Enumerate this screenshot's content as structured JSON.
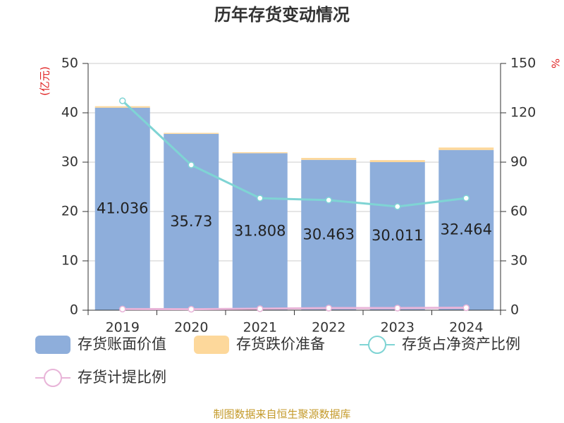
{
  "chart_data": {
    "type": "bar_line",
    "title": "历年存货变动情况",
    "y_label": "(亿元)",
    "y2_label": "%",
    "categories": [
      "2019",
      "2020",
      "2021",
      "2022",
      "2023",
      "2024"
    ],
    "series": [
      {
        "name": "存货账面价值",
        "color": "#8eaedb",
        "kind": "bar",
        "values": [
          41.036,
          35.73,
          31.808,
          30.463,
          30.011,
          32.464
        ]
      },
      {
        "name": "存货跌价准备",
        "color": "#fdd89b",
        "kind": "bar",
        "values": [
          0.3,
          0.2,
          0.2,
          0.4,
          0.4,
          0.5
        ]
      },
      {
        "name": "存货占净资产比例",
        "color": "#7fd4d4",
        "kind": "line",
        "axis": "y2",
        "values": [
          127.3,
          88.3,
          68.1,
          66.9,
          63.0,
          68.1
        ]
      },
      {
        "name": "存货计提比例",
        "color": "#e8b4d8",
        "kind": "line",
        "axis": "y2",
        "values": [
          0.7,
          0.6,
          0.9,
          1.3,
          1.3,
          1.5
        ]
      }
    ],
    "ylim": [
      0,
      50
    ],
    "yticks": [
      0,
      10,
      20,
      30,
      40,
      50
    ],
    "y2lim": [
      0,
      150
    ],
    "y2ticks": [
      0,
      30,
      60,
      90,
      120,
      150
    ],
    "grid": true,
    "source": "制图数据来自恒生聚源数据库"
  }
}
